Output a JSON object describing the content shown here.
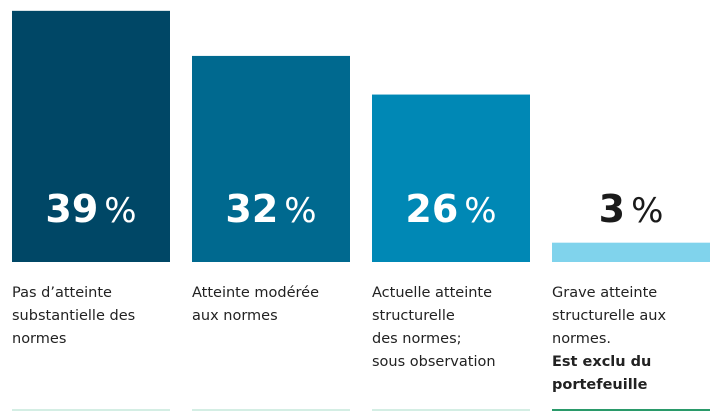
{
  "chart_data": {
    "type": "bar",
    "categories": [
      [
        "Pas d’atteinte",
        "substantielle des",
        "normes"
      ],
      [
        "Atteinte modérée",
        "aux normes"
      ],
      [
        "Actuelle atteinte",
        "structurelle",
        "des normes;",
        "sous observation"
      ],
      [
        "Grave atteinte",
        "structurelle aux",
        "normes."
      ]
    ],
    "annotation": [
      "Est exclu du",
      "portefeuille"
    ],
    "values": [
      39,
      32,
      26,
      3
    ],
    "unit": "%",
    "colors": [
      "#004766",
      "#00698f",
      "#0088b5",
      "#80d3ec"
    ]
  }
}
